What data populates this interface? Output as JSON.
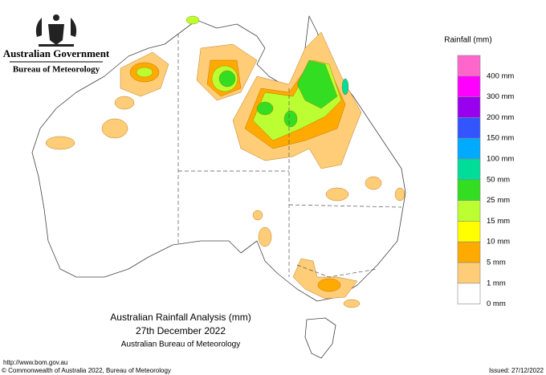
{
  "header": {
    "government": "Australian Government",
    "agency": "Bureau of Meteorology"
  },
  "legend": {
    "title": "Rainfall (mm)",
    "items": [
      {
        "label": "400 mm",
        "color": "#ff66cc"
      },
      {
        "label": "300 mm",
        "color": "#ff00ff"
      },
      {
        "label": "200 mm",
        "color": "#9900ee"
      },
      {
        "label": "150 mm",
        "color": "#3355ff"
      },
      {
        "label": "100 mm",
        "color": "#00aaff"
      },
      {
        "label": "50 mm",
        "color": "#00dd99"
      },
      {
        "label": "25 mm",
        "color": "#33dd22"
      },
      {
        "label": "15 mm",
        "color": "#bbff33"
      },
      {
        "label": "10 mm",
        "color": "#ffff00"
      },
      {
        "label": "5 mm",
        "color": "#ffaa00"
      },
      {
        "label": "1 mm",
        "color": "#ffcc77"
      },
      {
        "label": "0 mm",
        "color": "#ffffff"
      }
    ]
  },
  "map_title": {
    "line1": "Australian Rainfall Analysis (mm)",
    "line2": "27th December 2022",
    "line3": "Australian Bureau of Meteorology"
  },
  "footer": {
    "url": "http://www.bom.gov.au",
    "copyright": "© Commonwealth of Australia 2022, Bureau of Meteorology",
    "issued": "Issued: 27/12/2022"
  }
}
